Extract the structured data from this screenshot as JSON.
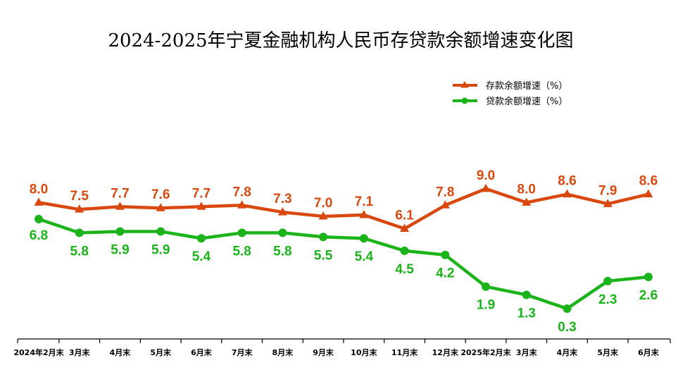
{
  "chart_data": {
    "type": "line",
    "title": "2024-2025年宁夏金融机构人民币存贷款余额增速变化图",
    "categories": [
      "2024年2月末",
      "3月末",
      "4月末",
      "5月末",
      "6月末",
      "7月末",
      "8月末",
      "9月末",
      "10月末",
      "11月末",
      "12月末",
      "2025年2月末",
      "3月末",
      "4月末",
      "5月末",
      "6月末"
    ],
    "series": [
      {
        "name": "存款余额增速（%）",
        "color": "#d9480f",
        "marker": "triangle",
        "values": [
          8.0,
          7.5,
          7.7,
          7.6,
          7.7,
          7.8,
          7.3,
          7.0,
          7.1,
          6.1,
          7.8,
          9.0,
          8.0,
          8.6,
          7.9,
          8.6
        ],
        "labels": [
          "8.0",
          "7.5",
          "7.7",
          "7.6",
          "7.7",
          "7.8",
          "7.3",
          "7.0",
          "7.1",
          "6.1",
          "7.8",
          "9.0",
          "8.0",
          "8.6",
          "7.9",
          "8.6"
        ]
      },
      {
        "name": "贷款余额增速（%）",
        "color": "#1ab31a",
        "marker": "circle",
        "values": [
          6.8,
          5.8,
          5.9,
          5.9,
          5.4,
          5.8,
          5.8,
          5.5,
          5.4,
          4.5,
          4.2,
          1.9,
          1.3,
          0.3,
          2.3,
          2.6
        ],
        "labels": [
          "6.8",
          "5.8",
          "5.9",
          "5.9",
          "5.4",
          "5.8",
          "5.8",
          "5.5",
          "5.4",
          "4.5",
          "4.2",
          "1.9",
          "1.3",
          "0.3",
          "2.3",
          "2.6"
        ]
      }
    ],
    "legend_position": "top-right",
    "grid": false
  }
}
